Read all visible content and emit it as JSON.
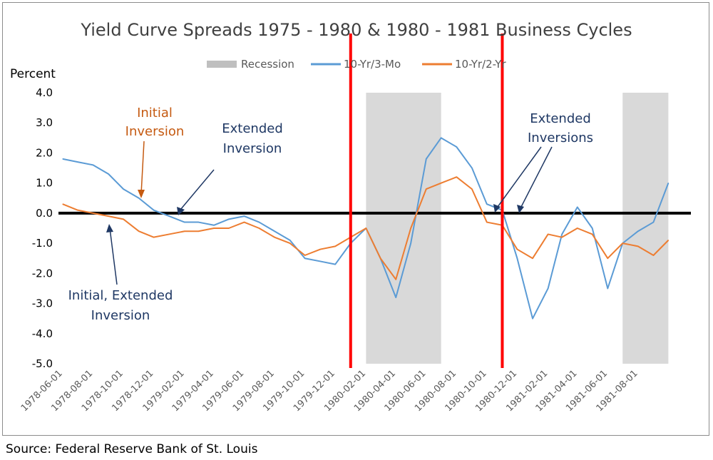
{
  "chart_data": {
    "type": "line",
    "title": "Yield Curve Spreads 1975 - 1980 & 1980 - 1981  Business Cycles",
    "ylabel": "Percent",
    "xlabel": "",
    "ylim": [
      -5.0,
      4.0
    ],
    "yticks": [
      "4.0",
      "3.0",
      "2.0",
      "1.0",
      "0.0",
      "-1.0",
      "-2.0",
      "-3.0",
      "-4.0",
      "-5.0"
    ],
    "xtick_labels": [
      "1978-06-01",
      "1978-08-01",
      "1978-10-01",
      "1978-12-01",
      "1979-02-01",
      "1979-04-01",
      "1979-06-01",
      "1979-08-01",
      "1979-10-01",
      "1979-12-01",
      "1980-02-01",
      "1980-04-01",
      "1980-06-01",
      "1980-08-01",
      "1980-10-01",
      "1980-12-01",
      "1981-02-01",
      "1981-04-01",
      "1981-06-01",
      "1981-08-01"
    ],
    "legend": {
      "placement": "top",
      "recession_label": "Recession"
    },
    "recessions": [
      {
        "start": "1980-02-01",
        "end": "1980-07-01"
      },
      {
        "start": "1981-07-01",
        "end": "1981-10-01"
      }
    ],
    "markers": [
      {
        "date": "1980-01-01",
        "color": "#ff0000"
      },
      {
        "date": "1980-11-01",
        "color": "#ff0000"
      }
    ],
    "zero_line": 0.0,
    "colors": {
      "recession": "#d9d9d9",
      "series_blue": "#5b9bd5",
      "series_orange": "#ed7d31",
      "annotation_orange": "#c55a11",
      "annotation_navy": "#1f3864",
      "marker_red": "#ff0000"
    },
    "x": [
      "1978-06",
      "1978-07",
      "1978-08",
      "1978-09",
      "1978-10",
      "1978-11",
      "1978-12",
      "1979-01",
      "1979-02",
      "1979-03",
      "1979-04",
      "1979-05",
      "1979-06",
      "1979-07",
      "1979-08",
      "1979-09",
      "1979-10",
      "1979-11",
      "1979-12",
      "1980-01",
      "1980-02",
      "1980-03",
      "1980-04",
      "1980-05",
      "1980-06",
      "1980-07",
      "1980-08",
      "1980-09",
      "1980-10",
      "1980-11",
      "1980-12",
      "1981-01",
      "1981-02",
      "1981-03",
      "1981-04",
      "1981-05",
      "1981-06",
      "1981-07",
      "1981-08",
      "1981-09",
      "1981-10"
    ],
    "series": [
      {
        "name": "10-Yr/3-Mo",
        "color": "#5b9bd5",
        "values": [
          1.8,
          1.7,
          1.6,
          1.3,
          0.8,
          0.5,
          0.1,
          -0.1,
          -0.3,
          -0.3,
          -0.4,
          -0.2,
          -0.1,
          -0.3,
          -0.6,
          -0.9,
          -1.5,
          -1.6,
          -1.7,
          -1.0,
          -0.5,
          -1.5,
          -2.8,
          -1.0,
          1.8,
          2.5,
          2.2,
          1.5,
          0.3,
          0.1,
          -1.5,
          -3.5,
          -2.5,
          -0.7,
          0.2,
          -0.5,
          -2.5,
          -1.0,
          -0.6,
          -0.3,
          1.0
        ]
      },
      {
        "name": "10-Yr/2-Yr",
        "color": "#ed7d31",
        "values": [
          0.3,
          0.1,
          0.0,
          -0.1,
          -0.2,
          -0.6,
          -0.8,
          -0.7,
          -0.6,
          -0.6,
          -0.5,
          -0.5,
          -0.3,
          -0.5,
          -0.8,
          -1.0,
          -1.4,
          -1.2,
          -1.1,
          -0.8,
          -0.5,
          -1.5,
          -2.2,
          -0.5,
          0.8,
          1.0,
          1.2,
          0.8,
          -0.3,
          -0.4,
          -1.2,
          -1.5,
          -0.7,
          -0.8,
          -0.5,
          -0.7,
          -1.5,
          -1.0,
          -1.1,
          -1.4,
          -0.9
        ]
      }
    ],
    "annotations": [
      {
        "lines": [
          "Initial",
          "Inversion"
        ],
        "color": "#c55a11"
      },
      {
        "lines": [
          "Extended",
          "Inversion"
        ],
        "color": "#1f3864"
      },
      {
        "lines": [
          "Extended",
          "Inversions"
        ],
        "color": "#1f3864"
      },
      {
        "lines": [
          "Initial, Extended",
          "Inversion"
        ],
        "color": "#1f3864"
      }
    ]
  },
  "source": "Source: Federal Reserve Bank of St. Louis"
}
